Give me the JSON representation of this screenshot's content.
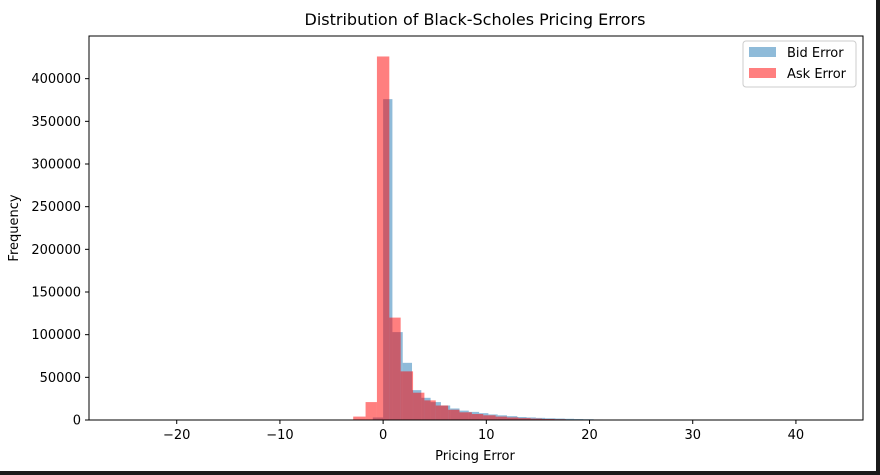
{
  "chart_data": {
    "type": "bar",
    "title": "Distribution of Black-Scholes Pricing Errors",
    "xlabel": "Pricing Error",
    "ylabel": "Frequency",
    "xlim": [
      -28.5,
      46.5
    ],
    "ylim": [
      0,
      450000
    ],
    "xticks": [
      -20,
      -10,
      0,
      10,
      20,
      30,
      40
    ],
    "xtick_labels": [
      "−20",
      "−10",
      "0",
      "10",
      "20",
      "30",
      "40"
    ],
    "yticks": [
      0,
      50000,
      100000,
      150000,
      200000,
      250000,
      300000,
      350000,
      400000
    ],
    "ytick_labels": [
      "0",
      "50000",
      "100000",
      "150000",
      "200000",
      "250000",
      "300000",
      "350000",
      "400000"
    ],
    "grid": false,
    "legend_position": "top-right",
    "series": [
      {
        "name": "Bid Error",
        "color": "#1f77b4",
        "alpha": 0.5,
        "bins": [
          {
            "x0": -1.0,
            "x1": 0.0,
            "value": 3000
          },
          {
            "x0": 0.0,
            "x1": 0.9,
            "value": 376000
          },
          {
            "x0": 0.9,
            "x1": 1.9,
            "value": 103000
          },
          {
            "x0": 1.9,
            "x1": 2.8,
            "value": 67000
          },
          {
            "x0": 2.8,
            "x1": 3.7,
            "value": 35000
          },
          {
            "x0": 3.7,
            "x1": 4.6,
            "value": 26000
          },
          {
            "x0": 4.6,
            "x1": 5.6,
            "value": 21000
          },
          {
            "x0": 5.6,
            "x1": 6.5,
            "value": 17000
          },
          {
            "x0": 6.5,
            "x1": 7.4,
            "value": 13500
          },
          {
            "x0": 7.4,
            "x1": 8.3,
            "value": 11000
          },
          {
            "x0": 8.3,
            "x1": 9.3,
            "value": 9500
          },
          {
            "x0": 9.3,
            "x1": 10.2,
            "value": 8000
          },
          {
            "x0": 10.2,
            "x1": 11.1,
            "value": 6500
          },
          {
            "x0": 11.1,
            "x1": 12.0,
            "value": 5500
          },
          {
            "x0": 12.0,
            "x1": 13.0,
            "value": 4500
          },
          {
            "x0": 13.0,
            "x1": 13.9,
            "value": 3500
          },
          {
            "x0": 13.9,
            "x1": 14.8,
            "value": 3000
          },
          {
            "x0": 14.8,
            "x1": 15.7,
            "value": 2500
          },
          {
            "x0": 15.7,
            "x1": 16.7,
            "value": 2000
          },
          {
            "x0": 16.7,
            "x1": 17.6,
            "value": 1700
          },
          {
            "x0": 17.6,
            "x1": 18.5,
            "value": 1400
          },
          {
            "x0": 18.5,
            "x1": 19.4,
            "value": 1100
          },
          {
            "x0": 19.4,
            "x1": 20.4,
            "value": 900
          },
          {
            "x0": 20.4,
            "x1": 21.3,
            "value": 600
          }
        ]
      },
      {
        "name": "Ask Error",
        "color": "#ff0000",
        "alpha": 0.5,
        "bins": [
          {
            "x0": -2.9,
            "x1": -1.7,
            "value": 4000
          },
          {
            "x0": -1.7,
            "x1": -0.6,
            "value": 21000
          },
          {
            "x0": -0.6,
            "x1": 0.6,
            "value": 426000
          },
          {
            "x0": 0.6,
            "x1": 1.7,
            "value": 120000
          },
          {
            "x0": 1.7,
            "x1": 2.9,
            "value": 57000
          },
          {
            "x0": 2.9,
            "x1": 4.0,
            "value": 32000
          },
          {
            "x0": 4.0,
            "x1": 5.1,
            "value": 23000
          },
          {
            "x0": 5.1,
            "x1": 6.3,
            "value": 17000
          },
          {
            "x0": 6.3,
            "x1": 7.4,
            "value": 12000
          },
          {
            "x0": 7.4,
            "x1": 8.6,
            "value": 9000
          },
          {
            "x0": 8.6,
            "x1": 9.7,
            "value": 7000
          },
          {
            "x0": 9.7,
            "x1": 10.9,
            "value": 5500
          },
          {
            "x0": 10.9,
            "x1": 12.0,
            "value": 4000
          },
          {
            "x0": 12.0,
            "x1": 13.1,
            "value": 3000
          },
          {
            "x0": 13.1,
            "x1": 14.3,
            "value": 2200
          },
          {
            "x0": 14.3,
            "x1": 15.4,
            "value": 1600
          },
          {
            "x0": 15.4,
            "x1": 16.6,
            "value": 1200
          },
          {
            "x0": 16.6,
            "x1": 17.7,
            "value": 900
          },
          {
            "x0": 17.7,
            "x1": 18.9,
            "value": 600
          },
          {
            "x0": 18.9,
            "x1": 20.0,
            "value": 400
          }
        ]
      }
    ]
  }
}
